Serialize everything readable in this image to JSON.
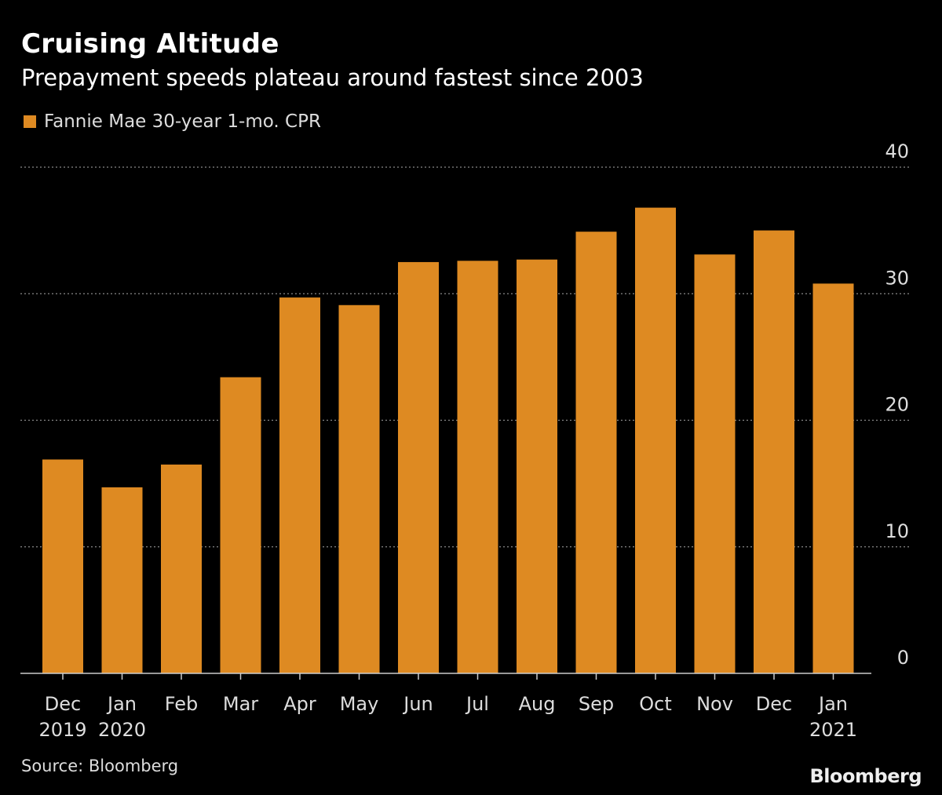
{
  "header": {
    "title": "Cruising Altitude",
    "subtitle": "Prepayment speeds plateau around fastest since 2003"
  },
  "legend": {
    "label": "Fannie Mae 30-year 1-mo. CPR"
  },
  "footer": {
    "source": "Source: Bloomberg",
    "brand": "Bloomberg"
  },
  "colors": {
    "bar": "#de8a22",
    "background": "#000000",
    "grid": "#888888",
    "axis": "#cccccc"
  },
  "chart_data": {
    "type": "bar",
    "title": "Cruising Altitude",
    "subtitle": "Prepayment speeds plateau around fastest since 2003",
    "xlabel": "",
    "ylabel": "",
    "ylim": [
      0,
      40
    ],
    "yticks": [
      0,
      10,
      20,
      30,
      40
    ],
    "grid": true,
    "legend_position": "top-left",
    "categories": [
      "Dec 2019",
      "Jan 2020",
      "Feb",
      "Mar",
      "Apr",
      "May",
      "Jun",
      "Jul",
      "Aug",
      "Sep",
      "Oct",
      "Nov",
      "Dec",
      "Jan 2021"
    ],
    "category_labels": [
      [
        "Dec",
        "2019"
      ],
      [
        "Jan",
        "2020"
      ],
      [
        "Feb",
        ""
      ],
      [
        "Mar",
        ""
      ],
      [
        "Apr",
        ""
      ],
      [
        "May",
        ""
      ],
      [
        "Jun",
        ""
      ],
      [
        "Jul",
        ""
      ],
      [
        "Aug",
        ""
      ],
      [
        "Sep",
        ""
      ],
      [
        "Oct",
        ""
      ],
      [
        "Nov",
        ""
      ],
      [
        "Dec",
        ""
      ],
      [
        "Jan",
        "2021"
      ]
    ],
    "series": [
      {
        "name": "Fannie Mae 30-year 1-mo. CPR",
        "values": [
          16.9,
          14.7,
          16.5,
          23.4,
          29.7,
          29.1,
          32.5,
          32.6,
          32.7,
          34.9,
          36.8,
          33.1,
          35.0,
          30.8
        ]
      }
    ]
  }
}
